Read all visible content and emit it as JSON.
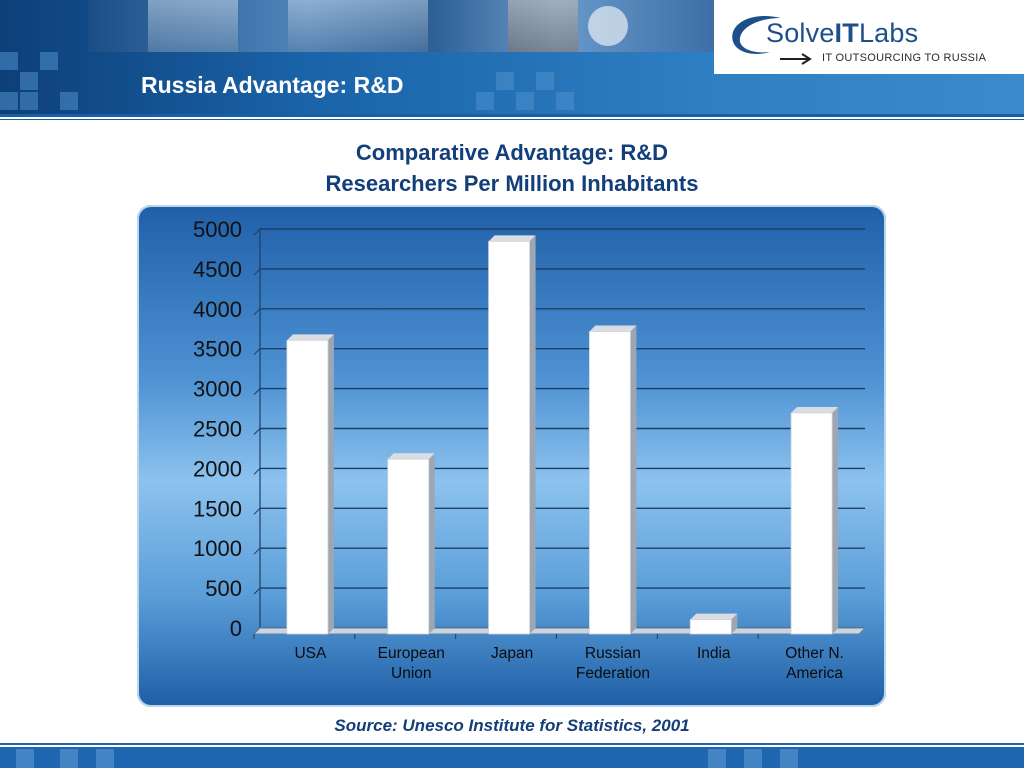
{
  "header": {
    "slide_title": "Russia Advantage: R&D",
    "logo_name_prefix": "Solve",
    "logo_name_mid": "IT",
    "logo_name_suffix": "Labs",
    "logo_tagline": "IT OUTSOURCING TO RUSSIA"
  },
  "colors": {
    "banner": "#1a63a8",
    "title_text": "#123e7a",
    "bar": "#ffffff",
    "panel_top": "#1f5fa8",
    "panel_mid": "#8cc2ee"
  },
  "chart_data": {
    "type": "bar",
    "title": "Comparative Advantage: R&D",
    "subtitle": "Researchers Per Million Inhabitants",
    "categories": [
      "USA",
      "European Union",
      "Japan",
      "Russian Federation",
      "India",
      "Other N. America"
    ],
    "category_lines": [
      [
        "USA"
      ],
      [
        "European",
        "Union"
      ],
      [
        "Japan"
      ],
      [
        "Russian",
        "Federation"
      ],
      [
        "India"
      ],
      [
        "Other N.",
        "America"
      ]
    ],
    "values": [
      3680,
      2190,
      4920,
      3790,
      180,
      2770
    ],
    "ylim": [
      0,
      5000
    ],
    "yticks": [
      "0",
      "500",
      "1000",
      "1500",
      "2000",
      "2500",
      "3000",
      "3500",
      "4000",
      "4500",
      "5000"
    ],
    "grid": true,
    "legend": "none",
    "style": "3d-bar"
  },
  "source": "Source: Unesco Institute for Statistics, 2001"
}
